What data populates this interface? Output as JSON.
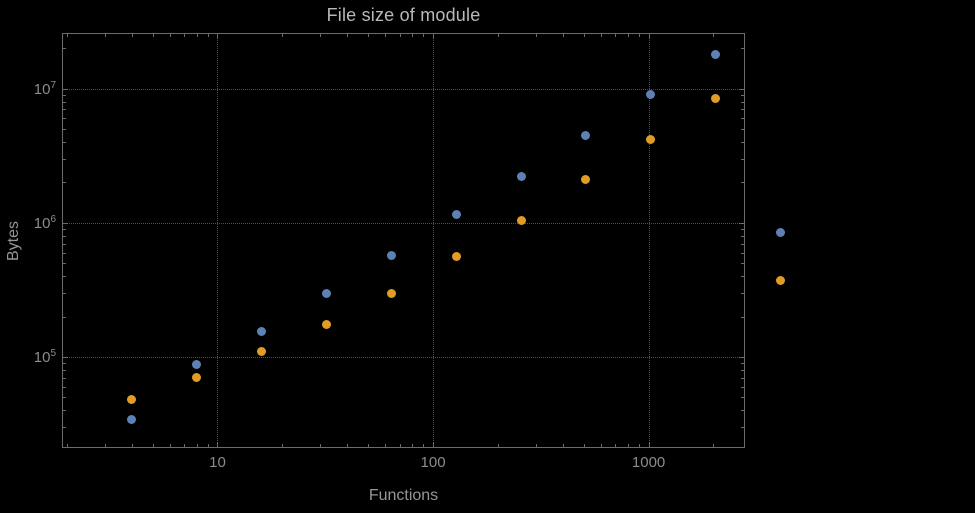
{
  "chart_data": {
    "type": "scatter",
    "title": "File size of module",
    "xlabel": "Functions",
    "ylabel": "Bytes",
    "x_scale": "log",
    "y_scale": "log",
    "xlim": [
      1.9,
      2800
    ],
    "ylim": [
      21000,
      26000000
    ],
    "grid": "dotted",
    "legend_position": "none",
    "x_ticks": [
      {
        "value": 10,
        "label": "10"
      },
      {
        "value": 100,
        "label": "100"
      },
      {
        "value": 1000,
        "label": "1000"
      }
    ],
    "y_ticks": [
      {
        "value": 100000,
        "base": "10",
        "exp": "5"
      },
      {
        "value": 1000000,
        "base": "10",
        "exp": "6"
      },
      {
        "value": 10000000,
        "base": "10",
        "exp": "7"
      }
    ],
    "series": [
      {
        "name": "blue-series",
        "color": "#5e81b5",
        "points": [
          [
            4,
            34000
          ],
          [
            8,
            88000
          ],
          [
            16,
            155000
          ],
          [
            32,
            300000
          ],
          [
            64,
            570000
          ],
          [
            128,
            1150000
          ],
          [
            256,
            2200000
          ],
          [
            512,
            4500000
          ],
          [
            1024,
            9000000
          ],
          [
            2048,
            18000000
          ],
          [
            4096,
            850000
          ]
        ]
      },
      {
        "name": "orange-series",
        "color": "#e19c24",
        "points": [
          [
            4,
            48000
          ],
          [
            8,
            70000
          ],
          [
            16,
            110000
          ],
          [
            32,
            175000
          ],
          [
            64,
            300000
          ],
          [
            128,
            560000
          ],
          [
            256,
            1050000
          ],
          [
            512,
            2100000
          ],
          [
            1024,
            4200000
          ],
          [
            2048,
            8500000
          ],
          [
            4096,
            370000
          ]
        ]
      }
    ]
  },
  "colors": {
    "background": "#000000",
    "frame": "#6b6b6b",
    "gridline": "#4d4d4d",
    "tick_label": "#8c8c8c",
    "axis_label": "#969696",
    "title": "#b9b9b9",
    "series_blue": "#5e81b5",
    "series_orange": "#e19c24"
  }
}
